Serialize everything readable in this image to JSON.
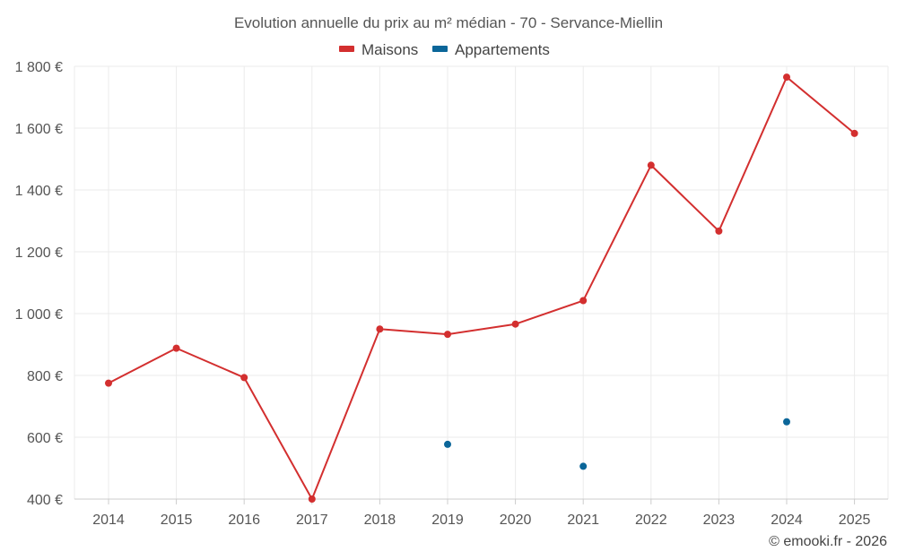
{
  "chart_data": {
    "type": "line",
    "title": "Evolution annuelle du prix au m² médian - 70 - Servance-Miellin",
    "categories": [
      "2014",
      "2015",
      "2016",
      "2017",
      "2018",
      "2019",
      "2020",
      "2021",
      "2022",
      "2023",
      "2024",
      "2025"
    ],
    "ylim": [
      400,
      1800
    ],
    "yticks": [
      400,
      600,
      800,
      1000,
      1200,
      1400,
      1600,
      1800
    ],
    "ytick_labels": [
      "400 €",
      "600 €",
      "800 €",
      "1 000 €",
      "1 200 €",
      "1 400 €",
      "1 600 €",
      "1 800 €"
    ],
    "series": [
      {
        "name": "Maisons",
        "color": "#d32f2f",
        "values": [
          775,
          888,
          793,
          400,
          950,
          933,
          966,
          1042,
          1480,
          1267,
          1765,
          1583
        ]
      },
      {
        "name": "Appartements",
        "color": "#0b6699",
        "values": [
          null,
          null,
          null,
          null,
          null,
          577,
          null,
          506,
          null,
          null,
          650,
          null
        ]
      }
    ],
    "grid": true,
    "legend_position": "top-center",
    "xlabel": "",
    "ylabel": ""
  },
  "footer": {
    "credit": "© emooki.fr - 2026"
  }
}
